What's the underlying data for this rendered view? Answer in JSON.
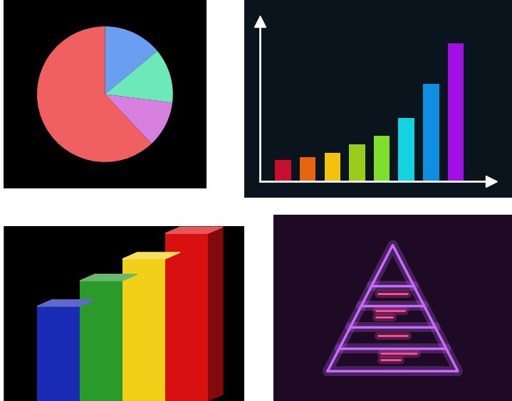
{
  "chart_data": [
    {
      "type": "pie",
      "values": [
        14,
        13,
        11,
        62
      ],
      "colors": [
        "#6a9ef0",
        "#6de8b8",
        "#d880e0",
        "#f06060"
      ]
    },
    {
      "type": "bar",
      "categories": [
        null,
        null,
        null,
        null,
        null,
        null,
        null,
        null
      ],
      "values": [
        3.0,
        3.4,
        4.0,
        5.2,
        6.4,
        8.9,
        13.7,
        19.4
      ],
      "colors": [
        "#c8102e",
        "#e8650f",
        "#f5c10f",
        "#9acd1a",
        "#7ee02a",
        "#13d3e0",
        "#0e8fe0",
        "#a010e6"
      ],
      "ylim": [
        0,
        22.5
      ],
      "yticks": [],
      "tick_labels": false
    },
    {
      "type": "bar3d",
      "categories": [
        null,
        null,
        null,
        null
      ],
      "values": [
        13,
        16.5,
        19.5,
        23
      ],
      "colors": [
        "#1a2bb5",
        "#2a9a2a",
        "#f2d01a",
        "#d81010"
      ],
      "ylim": [
        0,
        24
      ],
      "yticks": [],
      "tick_labels": false
    },
    {
      "type": "pyramid",
      "color": "#c86bff"
    }
  ]
}
